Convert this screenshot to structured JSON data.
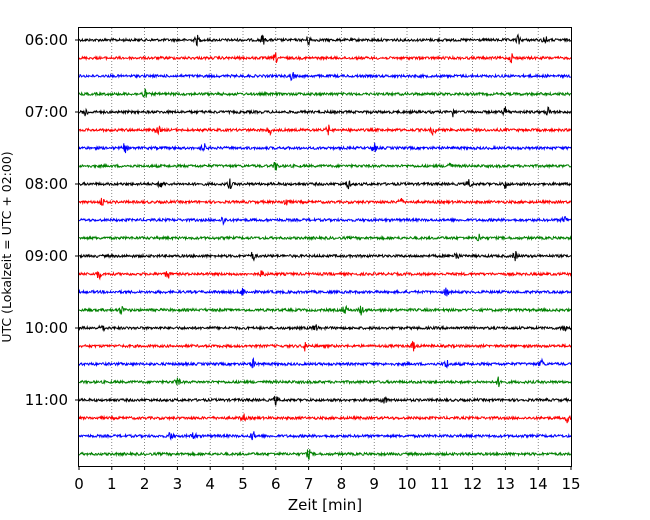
{
  "chart_data": {
    "type": "line",
    "xlabel": "Zeit  [min]",
    "ylabel": "UTC (Lokalzeit = UTC + 02:00)",
    "xlim": [
      0,
      15
    ],
    "x_ticks": [
      0,
      1,
      2,
      3,
      4,
      5,
      6,
      7,
      8,
      9,
      10,
      11,
      12,
      13,
      14,
      15
    ],
    "y_tick_labels": [
      "06:00",
      "07:00",
      "08:00",
      "09:00",
      "10:00",
      "11:00"
    ],
    "trace_interval_minutes": 15,
    "grid": "vertical dotted lines at each minute",
    "colors": [
      "#000000",
      "#ff0000",
      "#0000ff",
      "#008000"
    ],
    "traces": [
      {
        "start": "06:00",
        "color": "#000000",
        "events_min": [
          3.6,
          5.6,
          7.0,
          13.4,
          14.2
        ]
      },
      {
        "start": "06:15",
        "color": "#ff0000",
        "events_min": [
          6.0,
          13.2
        ]
      },
      {
        "start": "06:30",
        "color": "#0000ff",
        "events_min": [
          6.5
        ]
      },
      {
        "start": "06:45",
        "color": "#008000",
        "events_min": [
          2.0
        ]
      },
      {
        "start": "07:00",
        "color": "#000000",
        "events_min": [
          0.2,
          11.4,
          13.0,
          14.3
        ]
      },
      {
        "start": "07:15",
        "color": "#ff0000",
        "events_min": [
          2.4,
          5.8,
          7.6,
          10.8
        ]
      },
      {
        "start": "07:30",
        "color": "#0000ff",
        "events_min": [
          1.4,
          3.8,
          9.0
        ]
      },
      {
        "start": "07:45",
        "color": "#008000",
        "events_min": [
          6.0,
          11.3
        ]
      },
      {
        "start": "08:00",
        "color": "#000000",
        "events_min": [
          2.5,
          4.6,
          8.2,
          11.9,
          13.0
        ]
      },
      {
        "start": "08:15",
        "color": "#ff0000",
        "events_min": [
          0.7,
          6.3,
          9.8
        ]
      },
      {
        "start": "08:30",
        "color": "#0000ff",
        "events_min": [
          4.4,
          14.8
        ]
      },
      {
        "start": "08:45",
        "color": "#008000",
        "events_min": [
          12.2
        ]
      },
      {
        "start": "09:00",
        "color": "#000000",
        "events_min": [
          5.3,
          11.5,
          13.3
        ]
      },
      {
        "start": "09:15",
        "color": "#ff0000",
        "events_min": [
          0.6,
          2.7,
          5.6
        ]
      },
      {
        "start": "09:30",
        "color": "#0000ff",
        "events_min": [
          5.0,
          11.2
        ]
      },
      {
        "start": "09:45",
        "color": "#008000",
        "events_min": [
          1.3,
          8.1,
          8.6
        ]
      },
      {
        "start": "10:00",
        "color": "#000000",
        "events_min": [
          0.7,
          7.2,
          14.8
        ]
      },
      {
        "start": "10:15",
        "color": "#ff0000",
        "events_min": [
          6.9,
          10.2
        ]
      },
      {
        "start": "10:30",
        "color": "#0000ff",
        "events_min": [
          5.3,
          11.2,
          14.1
        ]
      },
      {
        "start": "10:45",
        "color": "#008000",
        "events_min": [
          3.0,
          12.8
        ]
      },
      {
        "start": "11:00",
        "color": "#000000",
        "events_min": [
          6.0,
          9.3
        ]
      },
      {
        "start": "11:15",
        "color": "#ff0000",
        "events_min": [
          5.0,
          14.9
        ]
      },
      {
        "start": "11:30",
        "color": "#0000ff",
        "events_min": [
          2.8,
          3.5,
          5.3
        ]
      },
      {
        "start": "11:45",
        "color": "#008000",
        "events_min": [
          7.0
        ]
      }
    ]
  }
}
